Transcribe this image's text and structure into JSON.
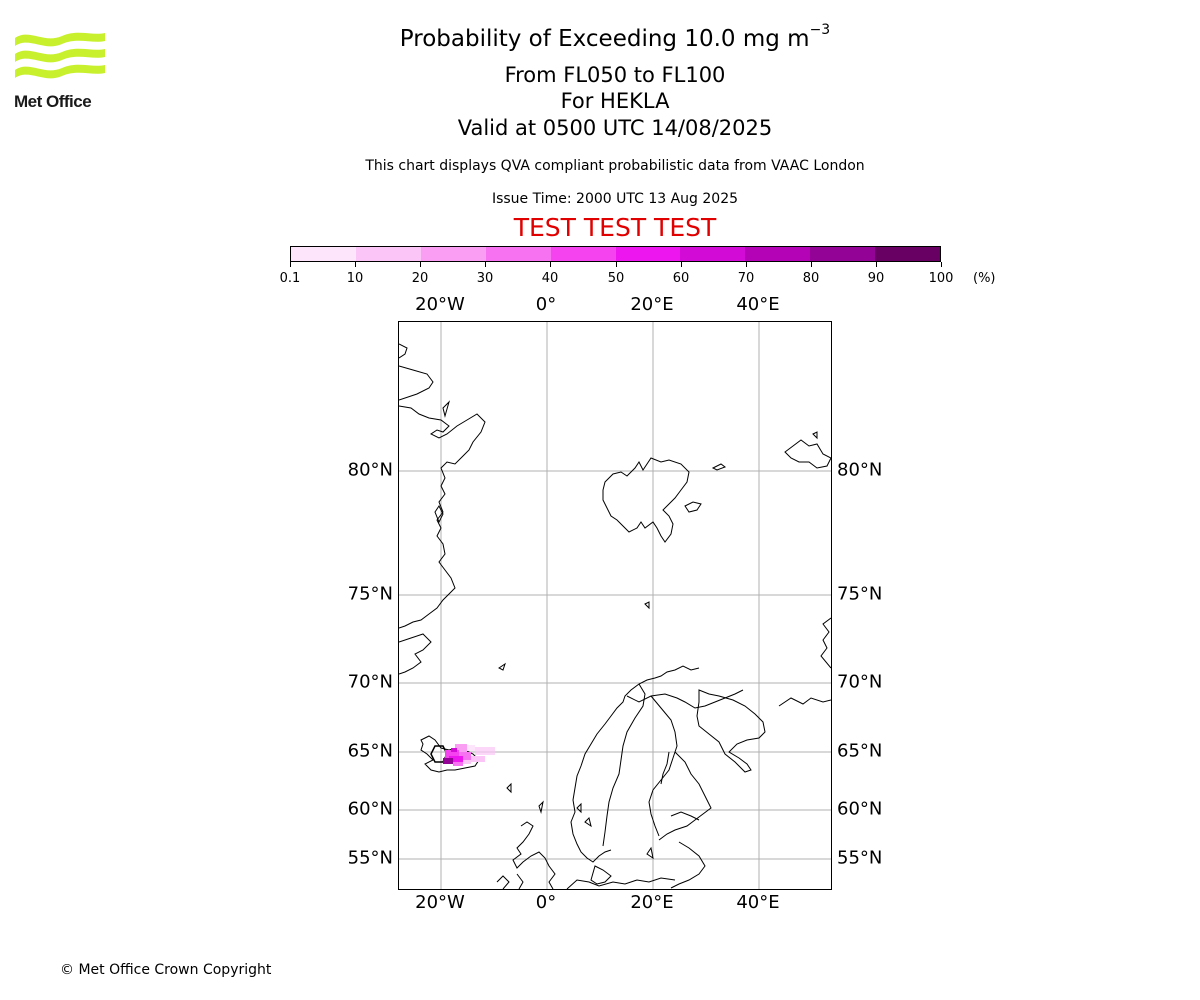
{
  "header": {
    "logo_text": "Met Office",
    "title_main": "Probability of Exceeding 10.0 mg m",
    "title_exponent": "−3",
    "flight_levels": "From FL050 to FL100",
    "volcano": "For HEKLA",
    "valid_time": "Valid at 0500 UTC 14/08/2025",
    "note": "This chart displays QVA compliant probabilistic data from VAAC London",
    "issue_time": "Issue Time: 2000 UTC 13 Aug 2025",
    "test_banner": "TEST TEST TEST"
  },
  "colorbar": {
    "ticks": [
      "0.1",
      "10",
      "20",
      "30",
      "40",
      "50",
      "60",
      "70",
      "80",
      "90",
      "100"
    ],
    "unit": "(%)",
    "colors": [
      "#fde6fb",
      "#fbc6f7",
      "#f99ef3",
      "#f772f1",
      "#f544ef",
      "#ee16ef",
      "#d20bd6",
      "#b403b7",
      "#920396",
      "#680064"
    ]
  },
  "map": {
    "lon_labels": [
      "20°W",
      "0°",
      "20°E",
      "40°E"
    ],
    "lat_labels": [
      "80°N",
      "75°N",
      "70°N",
      "65°N",
      "60°N",
      "55°N"
    ],
    "gridline_color": "#b0b0b0",
    "coastline_color": "#000000"
  },
  "footer": {
    "copyright": "© Met Office Crown Copyright"
  }
}
